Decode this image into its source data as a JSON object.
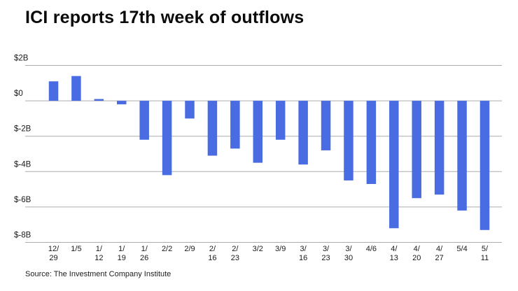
{
  "chart_data": {
    "type": "bar",
    "title": "ICI reports 17th week of outflows",
    "categories": [
      "12/29",
      "1/5",
      "1/12",
      "1/19",
      "1/26",
      "2/2",
      "2/9",
      "2/16",
      "2/23",
      "3/2",
      "3/9",
      "3/16",
      "3/23",
      "3/30",
      "4/6",
      "4/13",
      "4/20",
      "4/27",
      "5/4",
      "5/11"
    ],
    "values": [
      1.1,
      1.4,
      0.1,
      -0.2,
      -2.2,
      -4.2,
      -1.0,
      -3.1,
      -2.7,
      -3.5,
      -2.2,
      -3.6,
      -2.8,
      -4.5,
      -4.7,
      -7.2,
      -5.5,
      -5.3,
      -6.2,
      -7.3
    ],
    "value_unit": "billions USD",
    "xlabel": "",
    "ylabel": "",
    "ylim": [
      -8,
      2
    ],
    "y_ticks": [
      {
        "value": 2,
        "label": "$2B"
      },
      {
        "value": 0,
        "label": "$0"
      },
      {
        "value": -2,
        "label": "$-2B"
      },
      {
        "value": -4,
        "label": "$-4B"
      },
      {
        "value": -6,
        "label": "$-6B"
      },
      {
        "value": -8,
        "label": "$-8B"
      }
    ],
    "grid": true,
    "legend_position": "none",
    "bar_color": "#4A6CE3",
    "gridline_color": "#ACACAC",
    "tick_label_color": "#1A1A1A"
  },
  "footer": {
    "source": "Source: The Investment Company Institute"
  }
}
